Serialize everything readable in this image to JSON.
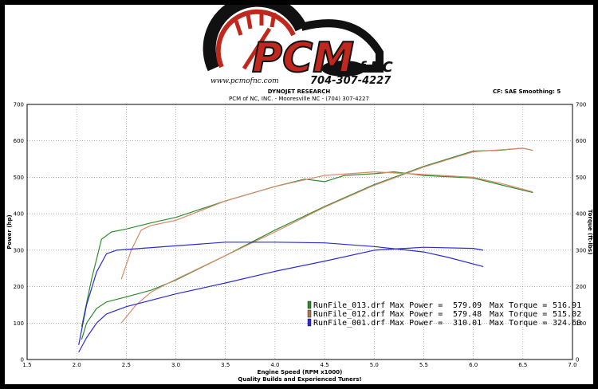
{
  "logo": {
    "main": "PCM",
    "suffix": "of NC",
    "url": "www.pcmofnc.com",
    "phone": "704-307-4227"
  },
  "header": {
    "line1": "DYNOJET RESEARCH",
    "line2": "PCM of NC, INC. - Mooresville NC - (704) 307-4227",
    "right": "CF: SAE  Smoothing: 5"
  },
  "footer": "Quality Builds and Experienced Tuners!",
  "colors": {
    "green": "#2e8b2e",
    "orange": "#d98a6a",
    "blue": "#2b2bd8"
  },
  "chart_data": {
    "type": "line",
    "xlabel": "Engine Speed (RPM x1000)",
    "ylabel_left": "Power (hp)",
    "ylabel_right": "Torque (ft-lbs)",
    "xlim": [
      1.5,
      7.0
    ],
    "ylim": [
      0,
      700
    ],
    "xticks": [
      "1.5",
      "2.0",
      "2.5",
      "3.0",
      "3.5",
      "4.0",
      "4.5",
      "5.0",
      "5.5",
      "6.0",
      "6.5",
      "7.0"
    ],
    "yticks": [
      "0",
      "100",
      "200",
      "300",
      "400",
      "500",
      "600",
      "700"
    ],
    "grid": true,
    "legend": [
      {
        "color": "#2e8b2e",
        "file": "RunFile_013.drf",
        "power_label": "Max Power =",
        "power": "579.09",
        "torque_label": "Max Torque =",
        "torque": "516.91"
      },
      {
        "color": "#b07850",
        "file": "RunFile_012.drf",
        "power_label": "Max Power =",
        "power": "579.48",
        "torque_label": "Max Torque =",
        "torque": "515.02"
      },
      {
        "color": "#2b2bd8",
        "file": "RunFile_001.drf",
        "power_label": "Max Power =",
        "power": "310.01",
        "torque_label": "Max Torque =",
        "torque": "324.60"
      }
    ],
    "series": [
      {
        "color": "#2e8b2e",
        "kind": "power",
        "points": [
          [
            2.05,
            55
          ],
          [
            2.1,
            100
          ],
          [
            2.2,
            140
          ],
          [
            2.3,
            158
          ],
          [
            2.5,
            172
          ],
          [
            2.75,
            190
          ],
          [
            3.0,
            218
          ],
          [
            3.5,
            285
          ],
          [
            4.0,
            355
          ],
          [
            4.5,
            420
          ],
          [
            5.0,
            480
          ],
          [
            5.5,
            530
          ],
          [
            6.0,
            572
          ],
          [
            6.25,
            574
          ],
          [
            6.5,
            580
          ],
          [
            6.6,
            574
          ]
        ]
      },
      {
        "color": "#2e8b2e",
        "kind": "torque",
        "points": [
          [
            2.05,
            90
          ],
          [
            2.15,
            220
          ],
          [
            2.25,
            330
          ],
          [
            2.35,
            350
          ],
          [
            2.5,
            358
          ],
          [
            2.75,
            375
          ],
          [
            3.0,
            390
          ],
          [
            3.5,
            435
          ],
          [
            4.0,
            475
          ],
          [
            4.3,
            495
          ],
          [
            4.5,
            488
          ],
          [
            4.7,
            505
          ],
          [
            5.0,
            510
          ],
          [
            5.2,
            515
          ],
          [
            5.5,
            505
          ],
          [
            6.0,
            498
          ],
          [
            6.3,
            478
          ],
          [
            6.6,
            458
          ]
        ]
      },
      {
        "color": "#d98a6a",
        "kind": "power",
        "points": [
          [
            2.45,
            100
          ],
          [
            2.6,
            150
          ],
          [
            2.75,
            185
          ],
          [
            3.0,
            220
          ],
          [
            3.5,
            285
          ],
          [
            4.0,
            350
          ],
          [
            4.5,
            418
          ],
          [
            5.0,
            478
          ],
          [
            5.5,
            528
          ],
          [
            6.0,
            570
          ],
          [
            6.5,
            580
          ],
          [
            6.6,
            574
          ]
        ]
      },
      {
        "color": "#d98a6a",
        "kind": "torque",
        "points": [
          [
            2.45,
            220
          ],
          [
            2.55,
            300
          ],
          [
            2.65,
            355
          ],
          [
            2.75,
            368
          ],
          [
            3.0,
            382
          ],
          [
            3.5,
            435
          ],
          [
            4.0,
            475
          ],
          [
            4.5,
            505
          ],
          [
            5.0,
            515
          ],
          [
            5.5,
            508
          ],
          [
            6.0,
            500
          ],
          [
            6.3,
            482
          ],
          [
            6.6,
            460
          ]
        ]
      },
      {
        "color": "#2b2bd8",
        "kind": "power",
        "points": [
          [
            2.02,
            20
          ],
          [
            2.1,
            60
          ],
          [
            2.2,
            100
          ],
          [
            2.3,
            125
          ],
          [
            2.5,
            145
          ],
          [
            3.0,
            180
          ],
          [
            3.5,
            210
          ],
          [
            4.0,
            242
          ],
          [
            4.5,
            270
          ],
          [
            5.0,
            300
          ],
          [
            5.5,
            308
          ],
          [
            6.0,
            305
          ],
          [
            6.1,
            300
          ]
        ]
      },
      {
        "color": "#2b2bd8",
        "kind": "torque",
        "points": [
          [
            2.02,
            40
          ],
          [
            2.1,
            150
          ],
          [
            2.2,
            240
          ],
          [
            2.3,
            290
          ],
          [
            2.4,
            300
          ],
          [
            3.0,
            312
          ],
          [
            3.5,
            322
          ],
          [
            4.0,
            322
          ],
          [
            4.5,
            320
          ],
          [
            5.0,
            310
          ],
          [
            5.5,
            295
          ],
          [
            5.75,
            280
          ],
          [
            6.1,
            255
          ]
        ]
      }
    ]
  }
}
